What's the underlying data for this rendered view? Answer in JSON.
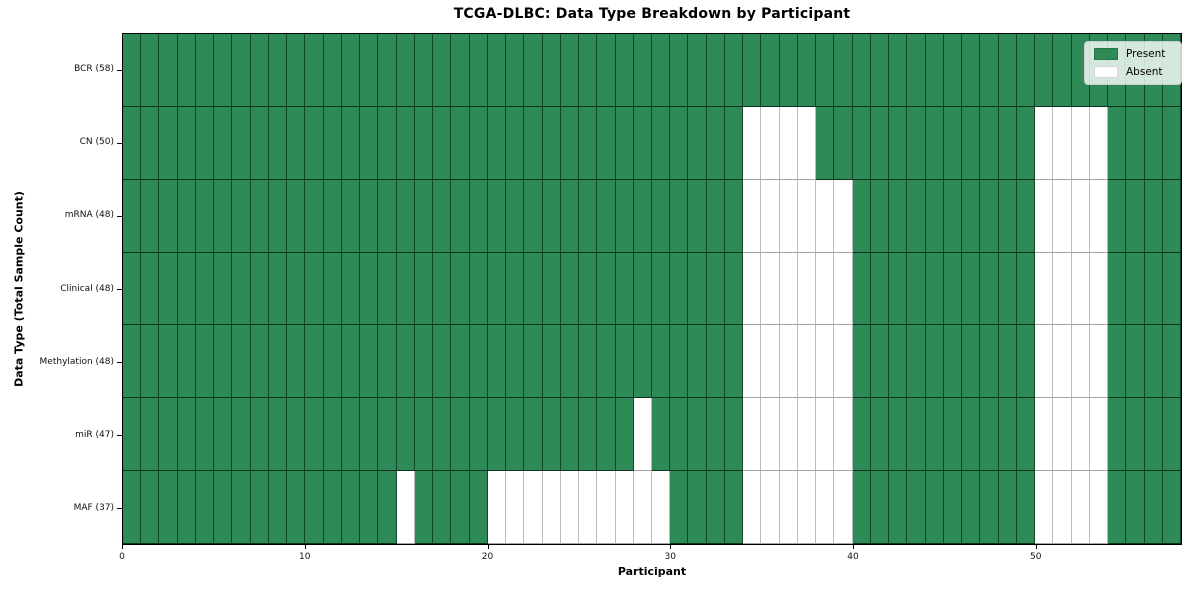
{
  "chart_data": {
    "type": "heatmap",
    "title": "TCGA-DLBC: Data Type Breakdown by Participant",
    "xlabel": "Participant",
    "ylabel": "Data Type (Total Sample Count)",
    "n_participants": 58,
    "x_ticks": [
      0,
      10,
      20,
      30,
      40,
      50
    ],
    "colors": {
      "present": "#2e8b57",
      "absent": "#ffffff"
    },
    "legend": {
      "position": "upper right",
      "items": [
        {
          "label": "Present",
          "color": "#2e8b57"
        },
        {
          "label": "Absent",
          "color": "#ffffff"
        }
      ]
    },
    "rows": [
      {
        "label": "BCR (58)",
        "data_type": "BCR",
        "present_count": 58,
        "absent_participants": []
      },
      {
        "label": "CN (50)",
        "data_type": "CN",
        "present_count": 50,
        "absent_participants": [
          34,
          35,
          36,
          37,
          50,
          51,
          52,
          53
        ]
      },
      {
        "label": "mRNA (48)",
        "data_type": "mRNA",
        "present_count": 48,
        "absent_participants": [
          34,
          35,
          36,
          37,
          38,
          39,
          50,
          51,
          52,
          53
        ]
      },
      {
        "label": "Clinical (48)",
        "data_type": "Clinical",
        "present_count": 48,
        "absent_participants": [
          34,
          35,
          36,
          37,
          38,
          39,
          50,
          51,
          52,
          53
        ]
      },
      {
        "label": "Methylation (48)",
        "data_type": "Methylation",
        "present_count": 48,
        "absent_participants": [
          34,
          35,
          36,
          37,
          38,
          39,
          50,
          51,
          52,
          53
        ]
      },
      {
        "label": "miR (47)",
        "data_type": "miR",
        "present_count": 47,
        "absent_participants": [
          28,
          34,
          35,
          36,
          37,
          38,
          39,
          50,
          51,
          52,
          53
        ]
      },
      {
        "label": "MAF (37)",
        "data_type": "MAF",
        "present_count": 37,
        "absent_participants": [
          15,
          20,
          21,
          22,
          23,
          24,
          25,
          26,
          27,
          28,
          29,
          34,
          35,
          36,
          37,
          38,
          39,
          50,
          51,
          52,
          53
        ]
      }
    ]
  }
}
